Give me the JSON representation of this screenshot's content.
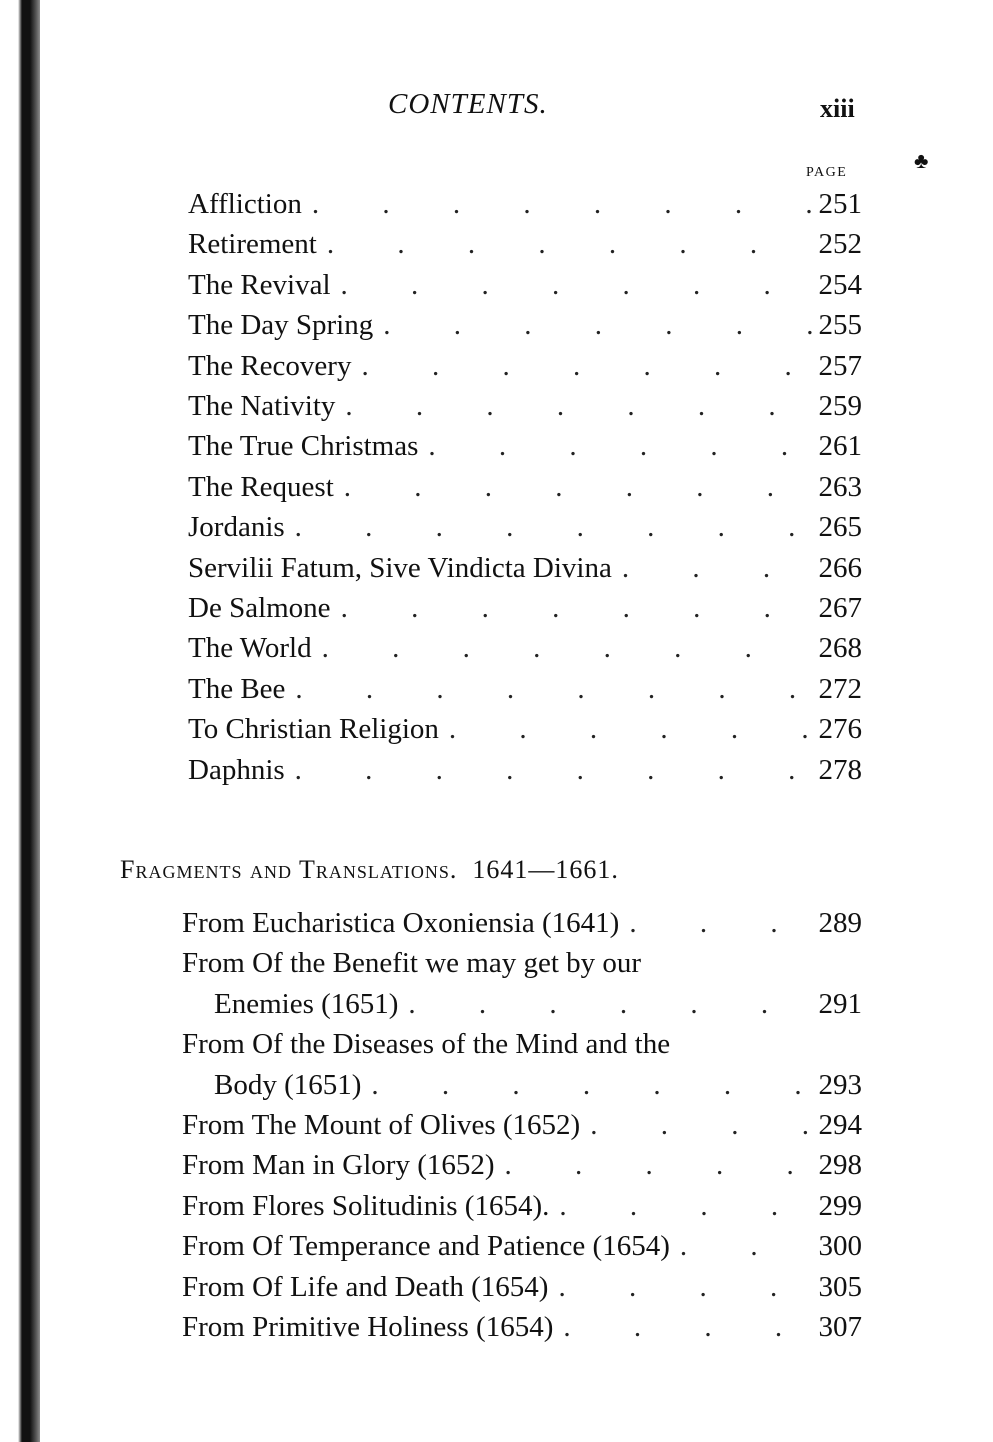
{
  "header": {
    "title": "CONTENTS.",
    "folio": "xiii",
    "page_label": "PAGE"
  },
  "entries": [
    {
      "title": "Affliction",
      "page": "251"
    },
    {
      "title": "Retirement",
      "page": "252"
    },
    {
      "title": "The Revival",
      "page": "254"
    },
    {
      "title": "The Day Spring",
      "page": "255"
    },
    {
      "title": "The Recovery",
      "page": "257"
    },
    {
      "title": "The Nativity",
      "page": "259"
    },
    {
      "title": "The True Christmas",
      "page": "261"
    },
    {
      "title": "The Request",
      "page": "263"
    },
    {
      "title": "Jordanis",
      "page": "265"
    },
    {
      "title": "Servilii Fatum, Sive Vindicta Divina",
      "page": "266"
    },
    {
      "title": "De Salmone",
      "page": "267"
    },
    {
      "title": "The World",
      "page": "268"
    },
    {
      "title": "The Bee",
      "page": "272"
    },
    {
      "title": "To Christian Religion",
      "page": "276"
    },
    {
      "title": "Daphnis",
      "page": "278"
    }
  ],
  "section": {
    "title": "Fragments and Translations.",
    "years": "1641—1661."
  },
  "fragments": [
    {
      "title": "From Eucharistica Oxoniensia (1641)",
      "page": "289"
    },
    {
      "title": "From Of the Benefit we may get by our",
      "page": ""
    },
    {
      "title": "Enemies (1651)",
      "page": "291"
    },
    {
      "title": "From Of the Diseases of the Mind and the",
      "page": ""
    },
    {
      "title": "Body (1651)",
      "page": "293"
    },
    {
      "title": "From The Mount of Olives (1652)",
      "page": "294"
    },
    {
      "title": "From Man in Glory (1652)",
      "page": "298"
    },
    {
      "title": "From Flores Solitudinis (1654).",
      "page": "299"
    },
    {
      "title": "From Of Temperance and Patience (1654)",
      "page": "300"
    },
    {
      "title": "From Of Life and Death (1654)",
      "page": "305"
    },
    {
      "title": "From Primitive Holiness (1654)",
      "page": "307"
    }
  ]
}
